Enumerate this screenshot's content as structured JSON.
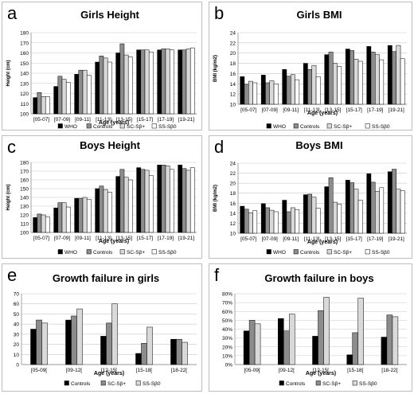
{
  "figure": {
    "panel_letters": [
      "a",
      "b",
      "c",
      "d",
      "e",
      "f"
    ],
    "series_colors": [
      "#000000",
      "#8c8c8c",
      "#d9d9d9",
      "#ffffff"
    ],
    "series_stroke": "#000000"
  },
  "chart_data": [
    {
      "type": "bar",
      "title": "Girls Height",
      "xlabel": "Age (years)",
      "ylabel": "Height (cm)",
      "categories": [
        "[05-07]",
        "[07-09]",
        "[09-11]",
        "[11-13]",
        "[13-15]",
        "[15-17]",
        "[17-19]",
        "[19-21]"
      ],
      "ylim": [
        100,
        180
      ],
      "yticks": [
        100,
        110,
        120,
        130,
        140,
        150,
        160,
        170,
        180
      ],
      "ytick_labels": [
        "100",
        "110",
        "120",
        "130",
        "140",
        "150",
        "160",
        "170",
        "180"
      ],
      "series": [
        {
          "name": "WHO",
          "values": [
            116,
            127,
            139,
            151,
            160,
            163,
            163,
            163
          ]
        },
        {
          "name": "Controls",
          "values": [
            121,
            137,
            143,
            157,
            169,
            163,
            164,
            163
          ]
        },
        {
          "name": "SC-Sβ+",
          "values": [
            117,
            134,
            143,
            155,
            158,
            163,
            164,
            164
          ]
        },
        {
          "name": "SS-Sβ0",
          "values": [
            117,
            131,
            138,
            151,
            156,
            161,
            163,
            165
          ]
        }
      ],
      "grid": true,
      "legend_position": "bottom"
    },
    {
      "type": "bar",
      "title": "Girls BMI",
      "xlabel": "Age (years)",
      "ylabel": "BMI (kg/m2)",
      "categories": [
        "[05-07]",
        "[07-09]",
        "[09-11]",
        "[11-13]",
        "[13-15]",
        "[15-17]",
        "[17-19]",
        "[19-21]"
      ],
      "ylim": [
        10,
        24
      ],
      "yticks": [
        10,
        12,
        14,
        16,
        18,
        20,
        22,
        24
      ],
      "ytick_labels": [
        "10",
        "12",
        "14",
        "16",
        "18",
        "20",
        "22",
        "24"
      ],
      "series": [
        {
          "name": "WHO",
          "values": [
            15.4,
            15.7,
            16.8,
            18.0,
            19.7,
            20.8,
            21.3,
            21.5
          ]
        },
        {
          "name": "Controls",
          "values": [
            13.9,
            14.2,
            15.5,
            16.8,
            20.2,
            20.5,
            20.2,
            20.3
          ]
        },
        {
          "name": "SC-Sβ+",
          "values": [
            14.5,
            14.6,
            15.8,
            17.6,
            18.0,
            18.8,
            19.7,
            21.5
          ]
        },
        {
          "name": "SS-Sβ0",
          "values": [
            14.2,
            14.0,
            14.8,
            15.4,
            17.4,
            18.4,
            18.7,
            18.9
          ]
        }
      ],
      "grid": true,
      "legend_position": "bottom"
    },
    {
      "type": "bar",
      "title": "Boys Height",
      "xlabel": "Age (years)",
      "ylabel": "Height (cm)",
      "categories": [
        "[05-07]",
        "[07-09]",
        "[09-11]",
        "[11-13]",
        "[13-15]",
        "[15-17]",
        "[17-19]",
        "[19-21]"
      ],
      "ylim": [
        100,
        180
      ],
      "yticks": [
        100,
        110,
        120,
        130,
        140,
        150,
        160,
        170,
        180
      ],
      "ytick_labels": [
        "100",
        "110",
        "120",
        "130",
        "140",
        "150",
        "160",
        "170",
        "180"
      ],
      "series": [
        {
          "name": "WHO",
          "values": [
            117,
            128,
            139,
            150,
            164,
            174,
            177,
            177
          ]
        },
        {
          "name": "Controls",
          "values": [
            121,
            134,
            139,
            153,
            172,
            172,
            177,
            173
          ]
        },
        {
          "name": "SC-Sβ+",
          "values": [
            120,
            134,
            140,
            149,
            163,
            171,
            176,
            171
          ]
        },
        {
          "name": "SS-Sβ0",
          "values": [
            118,
            129,
            138,
            146,
            160,
            165,
            172,
            174
          ]
        }
      ],
      "grid": true,
      "legend_position": "bottom"
    },
    {
      "type": "bar",
      "title": "Boys BMI",
      "xlabel": "Age (years)",
      "ylabel": "BMI (kg/m2)",
      "categories": [
        "[05-07]",
        "[07-09]",
        "[09-11]",
        "[11-13]",
        "[13-15]",
        "[15-17]",
        "[17-19]",
        "[19-21]"
      ],
      "ylim": [
        10,
        24
      ],
      "yticks": [
        10,
        12,
        14,
        16,
        18,
        20,
        22,
        24
      ],
      "ytick_labels": [
        "10",
        "12",
        "14",
        "16",
        "18",
        "20",
        "22",
        "24"
      ],
      "series": [
        {
          "name": "WHO",
          "values": [
            15.4,
            15.9,
            16.6,
            17.7,
            19.3,
            20.6,
            21.9,
            22.3
          ]
        },
        {
          "name": "Controls",
          "values": [
            14.8,
            15.1,
            14.3,
            17.8,
            21.1,
            20.1,
            20.2,
            22.8
          ]
        },
        {
          "name": "SC-Sβ+",
          "values": [
            14.1,
            14.6,
            15.1,
            17.2,
            16.2,
            18.8,
            18.4,
            18.8
          ]
        },
        {
          "name": "SS-Sβ0",
          "values": [
            14.5,
            14.3,
            14.7,
            15.0,
            15.8,
            16.6,
            19.1,
            18.5
          ]
        }
      ],
      "grid": true,
      "legend_position": "bottom"
    },
    {
      "type": "bar",
      "title": "Growth failure in girls",
      "xlabel": "Age (years)",
      "ylabel": "",
      "categories": [
        "[05-09[",
        "[09-12[",
        "[12-15[",
        "[15-18[",
        "[18-22["
      ],
      "ylim": [
        0,
        70
      ],
      "yticks": [
        0,
        10,
        20,
        30,
        40,
        50,
        60,
        70
      ],
      "ytick_labels": [
        "0",
        "10",
        "20",
        "30",
        "40",
        "50",
        "60",
        "70"
      ],
      "series": [
        {
          "name": "Controls",
          "values": [
            35,
            44,
            28,
            11,
            25
          ]
        },
        {
          "name": "SC-Sβ+",
          "values": [
            44,
            48,
            41,
            21,
            25
          ]
        },
        {
          "name": "SS-Sβ0",
          "values": [
            41,
            55,
            60,
            37,
            22
          ]
        }
      ],
      "grid": true,
      "legend_position": "bottom"
    },
    {
      "type": "bar",
      "title": "Growth failure in boys",
      "xlabel": "Age (years)",
      "ylabel": "",
      "categories": [
        "[05-09[",
        "[09-12[",
        "[12-15[",
        "[15-18[",
        "[18-22["
      ],
      "ylim": [
        0,
        80
      ],
      "yticks": [
        0,
        10,
        20,
        30,
        40,
        50,
        60,
        70,
        80
      ],
      "ytick_labels": [
        "0%",
        "10%",
        "20%",
        "30%",
        "40%",
        "50%",
        "60%",
        "70%",
        "80%"
      ],
      "series": [
        {
          "name": "Controls",
          "values": [
            38,
            52,
            32,
            11,
            31
          ]
        },
        {
          "name": "SC-Sβ+",
          "values": [
            50,
            38,
            61,
            36,
            56
          ]
        },
        {
          "name": "SS-Sβ0",
          "values": [
            46,
            57,
            76,
            75,
            54
          ]
        }
      ],
      "grid": true,
      "legend_position": "bottom"
    }
  ]
}
